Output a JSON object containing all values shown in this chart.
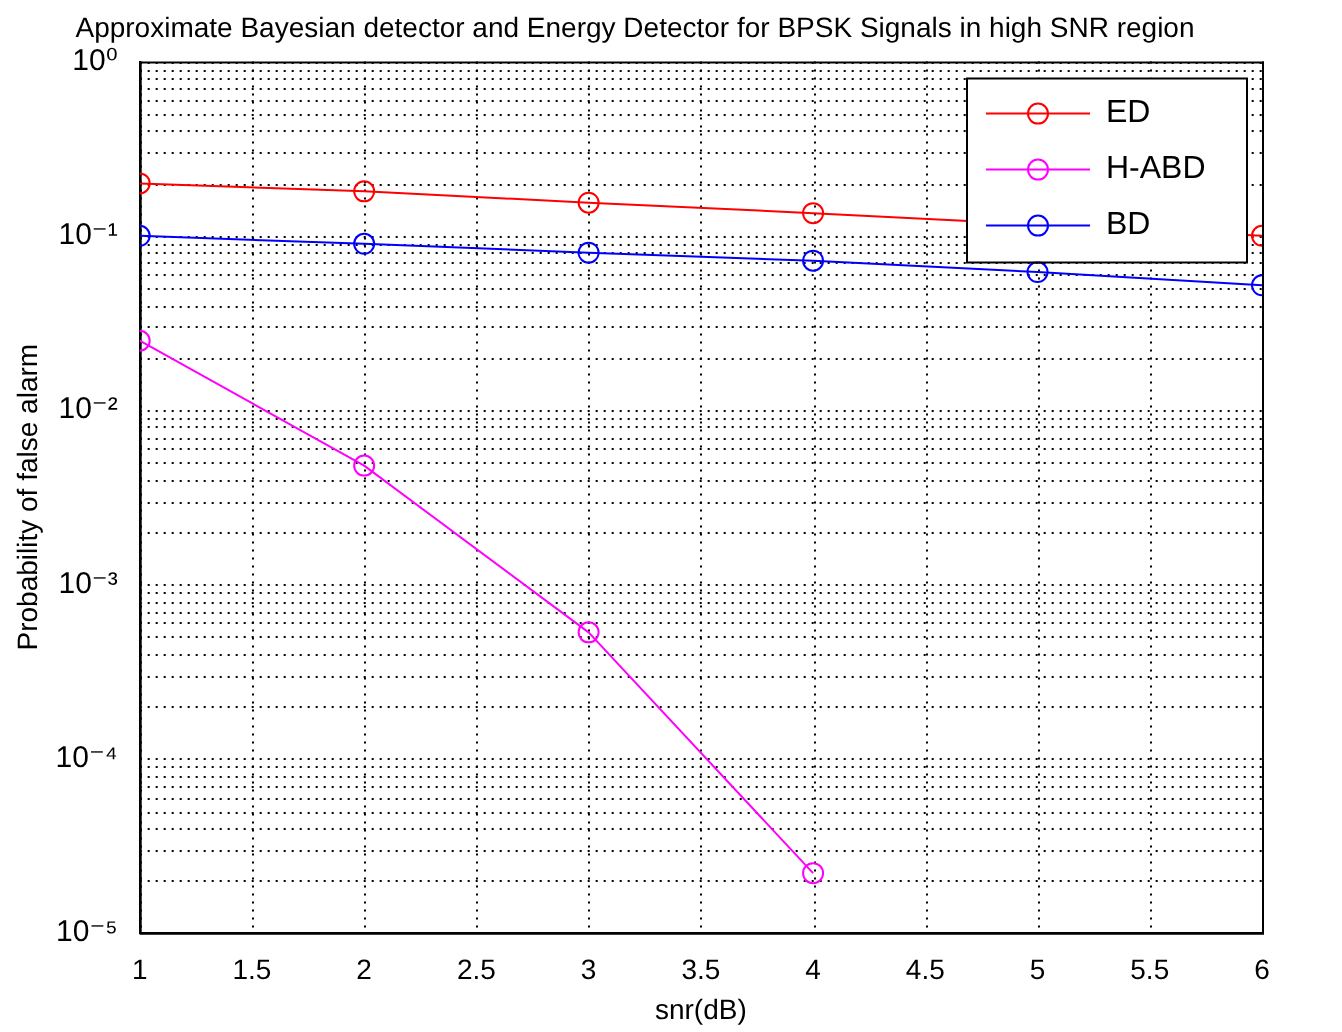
{
  "chart_data": {
    "type": "line",
    "title": "Approximate Bayesian detector and Energy Detector for BPSK Signals in high SNR region",
    "xlabel": "snr(dB)",
    "ylabel": "Probability of false alarm",
    "x": [
      1,
      2,
      3,
      4,
      5,
      6
    ],
    "series": [
      {
        "name": "ED",
        "color": "#ff0000",
        "values": [
          0.2,
          0.18,
          0.155,
          0.135,
          null,
          0.1
        ]
      },
      {
        "name": "H-ABD",
        "color": "#ff00ff",
        "values": [
          0.025,
          0.0048,
          0.00053,
          2.2e-05,
          null,
          null
        ]
      },
      {
        "name": "BD",
        "color": "#0000ff",
        "values": [
          0.1,
          0.09,
          0.08,
          0.072,
          0.062,
          0.052
        ]
      }
    ],
    "log": "y",
    "xlim": [
      1,
      6
    ],
    "xticks": [
      1,
      1.5,
      2,
      2.5,
      3,
      3.5,
      4,
      4.5,
      5,
      5.5,
      6
    ],
    "ylim": [
      1e-05,
      1
    ],
    "yticks": [
      {
        "value": 1e-05,
        "label": "10⁻⁵"
      },
      {
        "value": 0.0001,
        "label": "10⁻⁴"
      },
      {
        "value": 0.001,
        "label": "10⁻³"
      },
      {
        "value": 0.01,
        "label": "10⁻²"
      },
      {
        "value": 0.1,
        "label": "10⁻¹"
      },
      {
        "value": 1,
        "label": "10⁰"
      }
    ],
    "grid": true,
    "legend": "top right",
    "marker": "circle",
    "line_style": "solid"
  }
}
